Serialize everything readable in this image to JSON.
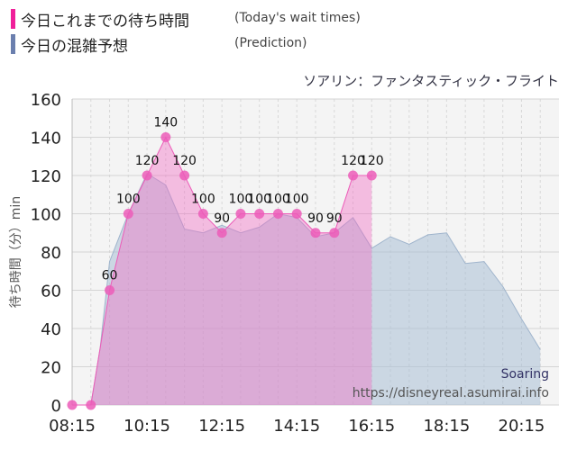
{
  "legend": {
    "today_jp": "今日これまでの待ち時間",
    "today_en": "(Today's wait times)",
    "prediction_jp": "今日の混雑予想",
    "prediction_en": "(Prediction)",
    "today_color": "#f0209a",
    "prediction_color": "#6b7fae"
  },
  "subtitle": "ソアリン：ファンタスティック・フライト",
  "watermark": {
    "name": "Soaring",
    "url": "https://disneyreal.asumirai.info"
  },
  "chart_data": {
    "type": "area",
    "ylabel": "待ち時間（分）min",
    "ylim": [
      0,
      160
    ],
    "yticks": [
      0,
      20,
      40,
      60,
      80,
      100,
      120,
      140,
      160
    ],
    "xticks": [
      "08:15",
      "10:15",
      "12:15",
      "14:15",
      "16:15",
      "18:15",
      "20:15"
    ],
    "xlim_minutes_after_0815": [
      0,
      780
    ],
    "grid": true,
    "series": [
      {
        "name": "Today's wait times",
        "color": "#f0209a",
        "points": [
          {
            "time": "08:15",
            "value": 0
          },
          {
            "time": "08:45",
            "value": 0
          },
          {
            "time": "09:15",
            "value": 60
          },
          {
            "time": "09:45",
            "value": 100
          },
          {
            "time": "10:15",
            "value": 120
          },
          {
            "time": "10:45",
            "value": 140
          },
          {
            "time": "11:15",
            "value": 120
          },
          {
            "time": "11:45",
            "value": 100
          },
          {
            "time": "12:15",
            "value": 90
          },
          {
            "time": "12:45",
            "value": 100
          },
          {
            "time": "13:15",
            "value": 100
          },
          {
            "time": "13:45",
            "value": 100
          },
          {
            "time": "14:15",
            "value": 100
          },
          {
            "time": "14:45",
            "value": 90
          },
          {
            "time": "15:15",
            "value": 90
          },
          {
            "time": "15:45",
            "value": 120
          },
          {
            "time": "16:15",
            "value": 120
          }
        ]
      },
      {
        "name": "Prediction",
        "color": "#9fb4cc",
        "points": [
          {
            "time": "08:15",
            "value": 0
          },
          {
            "time": "08:45",
            "value": 0
          },
          {
            "time": "09:00",
            "value": 30
          },
          {
            "time": "09:15",
            "value": 75
          },
          {
            "time": "09:45",
            "value": 100
          },
          {
            "time": "10:15",
            "value": 121
          },
          {
            "time": "10:45",
            "value": 115
          },
          {
            "time": "11:15",
            "value": 92
          },
          {
            "time": "11:45",
            "value": 90
          },
          {
            "time": "12:15",
            "value": 94
          },
          {
            "time": "12:45",
            "value": 90
          },
          {
            "time": "13:15",
            "value": 93
          },
          {
            "time": "13:45",
            "value": 100
          },
          {
            "time": "14:15",
            "value": 98
          },
          {
            "time": "14:45",
            "value": 88
          },
          {
            "time": "15:15",
            "value": 90
          },
          {
            "time": "15:45",
            "value": 98
          },
          {
            "time": "16:15",
            "value": 82
          },
          {
            "time": "16:45",
            "value": 88
          },
          {
            "time": "17:15",
            "value": 84
          },
          {
            "time": "17:45",
            "value": 89
          },
          {
            "time": "18:15",
            "value": 90
          },
          {
            "time": "18:45",
            "value": 74
          },
          {
            "time": "19:15",
            "value": 75
          },
          {
            "time": "19:45",
            "value": 62
          },
          {
            "time": "20:15",
            "value": 45
          },
          {
            "time": "20:45",
            "value": 29
          }
        ]
      }
    ]
  }
}
